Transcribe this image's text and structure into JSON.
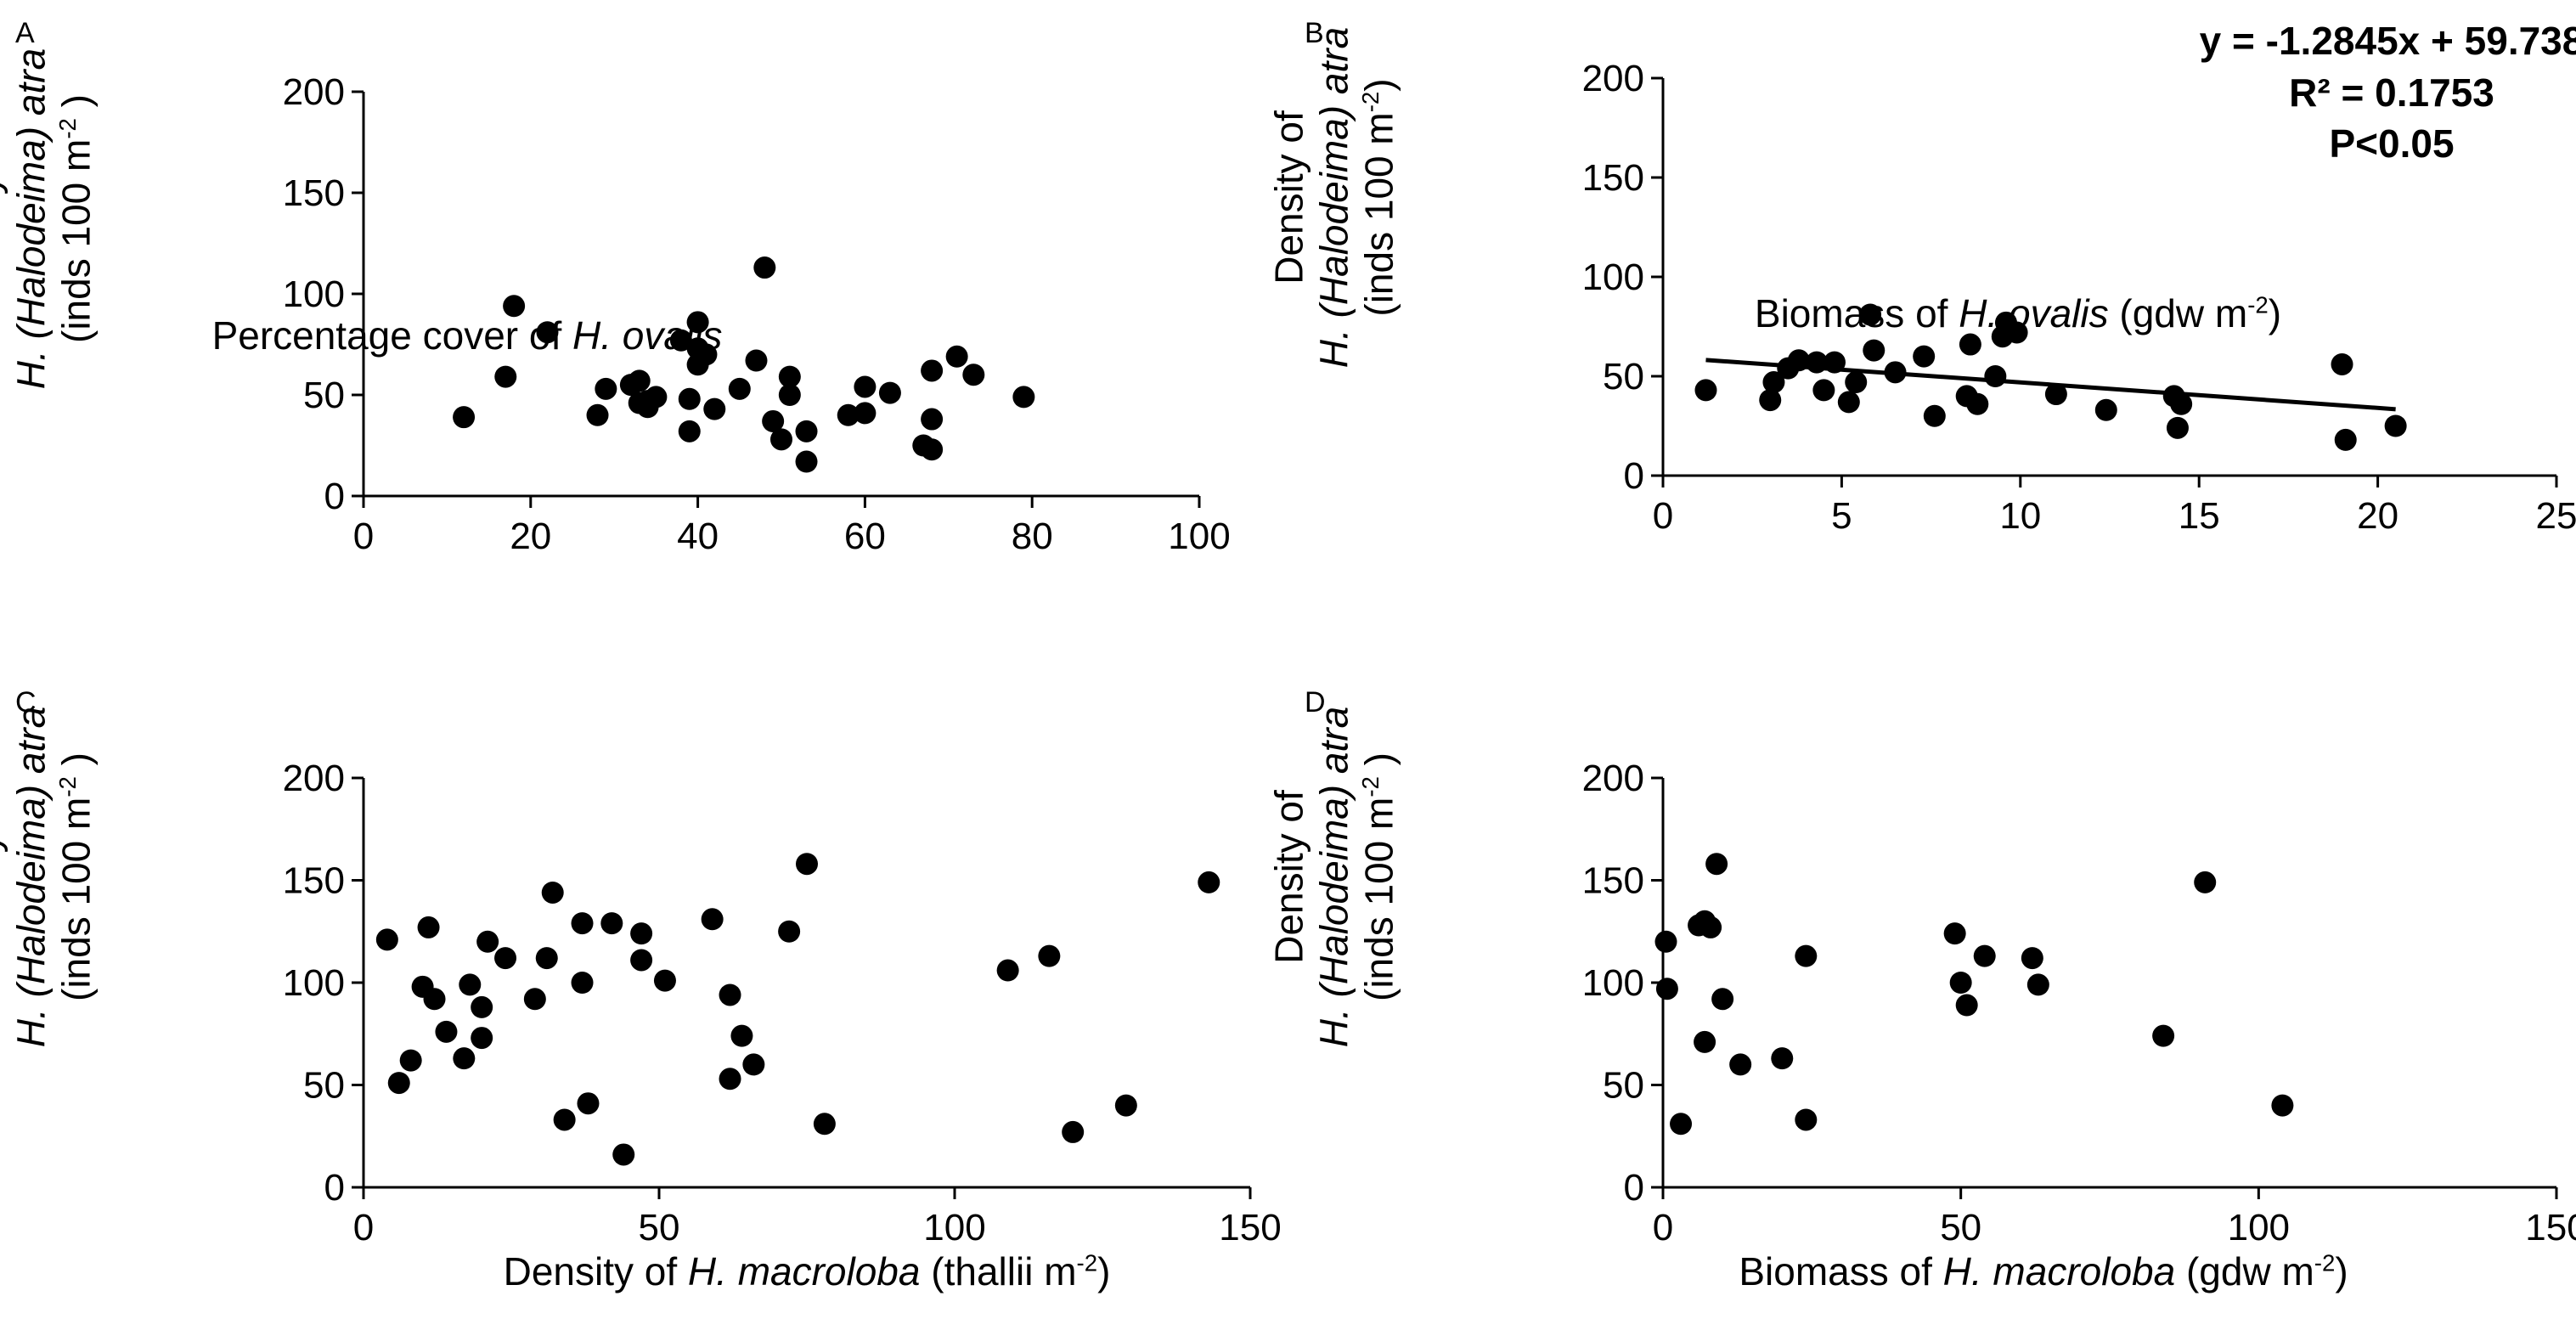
{
  "colors": {
    "marker": "#000000",
    "axis": "#000000",
    "background": "#ffffff"
  },
  "chart_data": [
    {
      "panel": "A",
      "type": "scatter",
      "xlabel_pre": "Percentage cover of ",
      "xlabel_species": "H. ovalis",
      "xlabel_post": "",
      "ylabel_line1_pre": "Density of",
      "ylabel_line2_species": "H. (Halodeima) atra",
      "ylabel_line3": "(inds 100 m",
      "ylabel_sup": "-2",
      "ylabel_line3_post": " )",
      "xlim": [
        0,
        100
      ],
      "ylim": [
        0,
        200
      ],
      "xticks": [
        "0",
        "20",
        "40",
        "60",
        "80",
        "100"
      ],
      "yticks": [
        "0",
        "50",
        "100",
        "150",
        "200"
      ],
      "x": [
        12,
        17,
        18,
        22,
        28,
        29,
        32,
        33,
        33,
        34,
        34,
        38,
        39,
        39,
        40,
        40,
        40,
        41,
        42,
        45,
        47,
        48,
        49,
        50,
        51,
        51,
        53,
        53,
        58,
        60,
        60,
        63,
        67,
        68,
        68,
        68,
        71,
        73,
        79,
        35
      ],
      "y": [
        39,
        59,
        94,
        81,
        40,
        53,
        55,
        46,
        57,
        47,
        44,
        77,
        32,
        48,
        65,
        86,
        73,
        70,
        43,
        53,
        67,
        113,
        37,
        28,
        59,
        50,
        17,
        32,
        40,
        54,
        41,
        51,
        25,
        38,
        23,
        62,
        69,
        60,
        49,
        49
      ]
    },
    {
      "panel": "B",
      "type": "scatter",
      "xlabel_pre": "Biomass of ",
      "xlabel_species": "H. ovalis",
      "xlabel_post": " (gdw m",
      "xlabel_sup": "-2",
      "xlabel_end": ")",
      "ylabel_line1_pre": "Density of",
      "ylabel_line2_species": "H. (Halodeima) atra",
      "ylabel_line3": "(inds 100 m",
      "ylabel_sup": "-2",
      "ylabel_line3_post": ")",
      "xlim": [
        0,
        25
      ],
      "ylim": [
        0,
        200
      ],
      "xticks": [
        "0",
        "5",
        "10",
        "15",
        "20",
        "25"
      ],
      "yticks": [
        "0",
        "50",
        "100",
        "150",
        "200"
      ],
      "x": [
        1.2,
        3.0,
        3.1,
        3.5,
        3.8,
        4.3,
        4.5,
        4.8,
        5.2,
        5.4,
        5.8,
        5.9,
        6.5,
        7.3,
        7.6,
        8.5,
        8.6,
        8.8,
        9.3,
        9.5,
        9.6,
        9.9,
        11.0,
        12.4,
        14.3,
        14.4,
        14.5,
        19.0,
        19.1,
        20.5
      ],
      "y": [
        43,
        38,
        47,
        54,
        58,
        57,
        43,
        57,
        37,
        47,
        81,
        63,
        52,
        60,
        30,
        40,
        66,
        36,
        50,
        70,
        77,
        72,
        41,
        33,
        40,
        24,
        36,
        56,
        18,
        25
      ],
      "trendline": {
        "slope": -1.2845,
        "intercept": 59.738,
        "x_range": [
          1.2,
          20.5
        ]
      },
      "annotations": [
        "y = -1.2845x + 59.738",
        "R² = 0.1753",
        "P<0.05"
      ]
    },
    {
      "panel": "C",
      "type": "scatter",
      "xlabel_pre": "Density of ",
      "xlabel_species": "H. macroloba",
      "xlabel_post": " (thallii m",
      "xlabel_sup": "-2",
      "xlabel_end": ")",
      "ylabel_line1_pre": "Density of",
      "ylabel_line2_species": "H. (Halodeima) atra",
      "ylabel_line3": "(inds 100 m",
      "ylabel_sup": "-2",
      "ylabel_line3_post": " )",
      "xlim": [
        0,
        150
      ],
      "ylim": [
        0,
        200
      ],
      "xticks": [
        "0",
        "50",
        "100",
        "150"
      ],
      "yticks": [
        "0",
        "50",
        "100",
        "150",
        "200"
      ],
      "x": [
        4,
        6,
        8,
        10,
        11,
        12,
        14,
        17,
        18,
        20,
        20,
        21,
        24,
        29,
        31,
        32,
        34,
        37,
        37,
        38,
        42,
        44,
        47,
        47,
        51,
        59,
        62,
        62,
        64,
        66,
        72,
        75,
        78,
        109,
        116,
        120,
        129,
        143
      ],
      "y": [
        121,
        51,
        62,
        98,
        127,
        92,
        76,
        63,
        99,
        73,
        88,
        120,
        112,
        92,
        112,
        144,
        33,
        100,
        129,
        41,
        129,
        16,
        111,
        124,
        101,
        131,
        53,
        94,
        74,
        60,
        125,
        158,
        31,
        106,
        113,
        27,
        40,
        149
      ]
    },
    {
      "panel": "D",
      "type": "scatter",
      "xlabel_pre": "Biomass of ",
      "xlabel_species": "H. macroloba",
      "xlabel_post": " (gdw m",
      "xlabel_sup": "-2",
      "xlabel_end": ")",
      "ylabel_line1_pre": "Density of",
      "ylabel_line2_species": "H. (Halodeima) atra",
      "ylabel_line3": "(inds 100 m",
      "ylabel_sup": "-2",
      "ylabel_line3_post": " )",
      "xlim": [
        0,
        150
      ],
      "ylim": [
        0,
        200
      ],
      "xticks": [
        "0",
        "50",
        "100",
        "150"
      ],
      "yticks": [
        "0",
        "50",
        "100",
        "150",
        "200"
      ],
      "x": [
        0.5,
        0.7,
        3,
        6,
        7,
        7,
        8,
        9,
        10,
        13,
        20,
        24,
        24,
        49,
        50,
        51,
        54,
        62,
        63,
        84,
        91,
        104
      ],
      "y": [
        120,
        97,
        31,
        128,
        130,
        71,
        127,
        158,
        92,
        60,
        63,
        113,
        33,
        124,
        100,
        89,
        113,
        112,
        99,
        74,
        149,
        40
      ]
    }
  ],
  "panels": {
    "A": {
      "label": "A"
    },
    "B": {
      "label": "B"
    },
    "C": {
      "label": "C"
    },
    "D": {
      "label": "D"
    }
  }
}
